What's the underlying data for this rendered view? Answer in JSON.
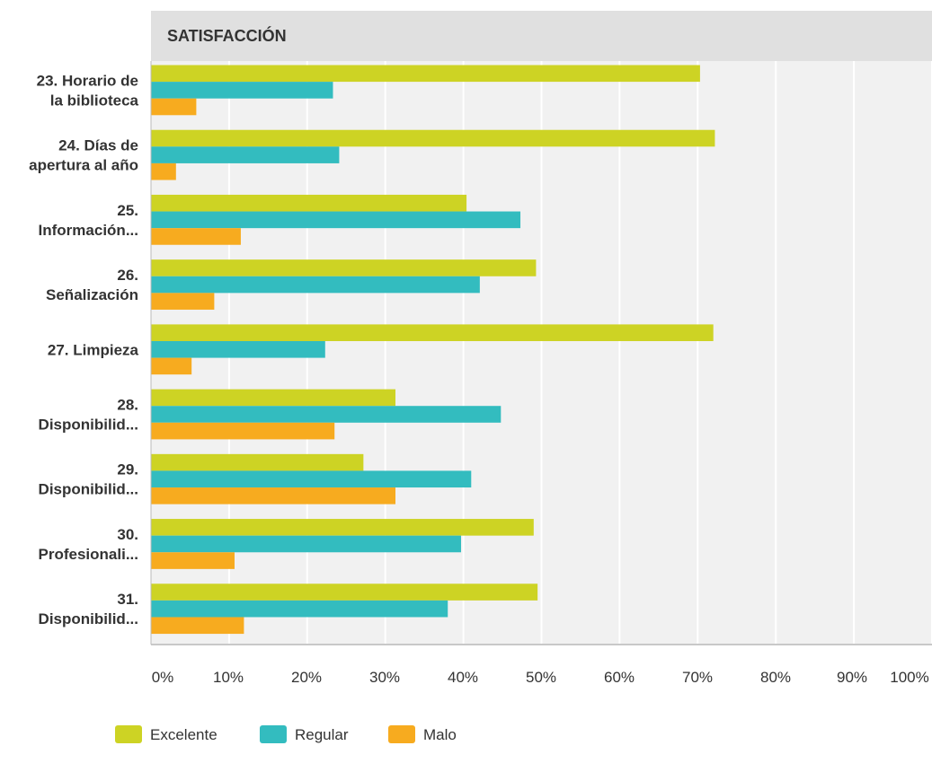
{
  "chart_data": {
    "type": "bar",
    "orientation": "horizontal",
    "title": "SATISFACCIÓN",
    "categories": [
      [
        "23. Horario de",
        "la biblioteca"
      ],
      [
        "24. Días de",
        "apertura al año"
      ],
      [
        "25.",
        "Información..."
      ],
      [
        "26.",
        "Señalización"
      ],
      [
        "27. Limpieza"
      ],
      [
        "28.",
        "Disponibilid..."
      ],
      [
        "29.",
        "Disponibilid..."
      ],
      [
        "30.",
        "Profesionali..."
      ],
      [
        "31.",
        "Disponibilid..."
      ]
    ],
    "series": [
      {
        "name": "Excelente",
        "color": "#cdd324",
        "values": [
          70.3,
          72.2,
          40.4,
          49.3,
          72.0,
          31.3,
          27.2,
          49.0,
          49.5
        ]
      },
      {
        "name": "Regular",
        "color": "#33bcbf",
        "values": [
          23.3,
          24.1,
          47.3,
          42.1,
          22.3,
          44.8,
          41.0,
          39.7,
          38.0
        ]
      },
      {
        "name": "Malo",
        "color": "#f7ab1f",
        "values": [
          5.8,
          3.2,
          11.5,
          8.1,
          5.2,
          23.5,
          31.3,
          10.7,
          11.9
        ]
      }
    ],
    "xlim": [
      0,
      100
    ],
    "ticks": [
      "0%",
      "10%",
      "20%",
      "30%",
      "40%",
      "50%",
      "60%",
      "70%",
      "80%",
      "90%",
      "100%"
    ],
    "grid": true,
    "legend_position": "bottom-left"
  }
}
